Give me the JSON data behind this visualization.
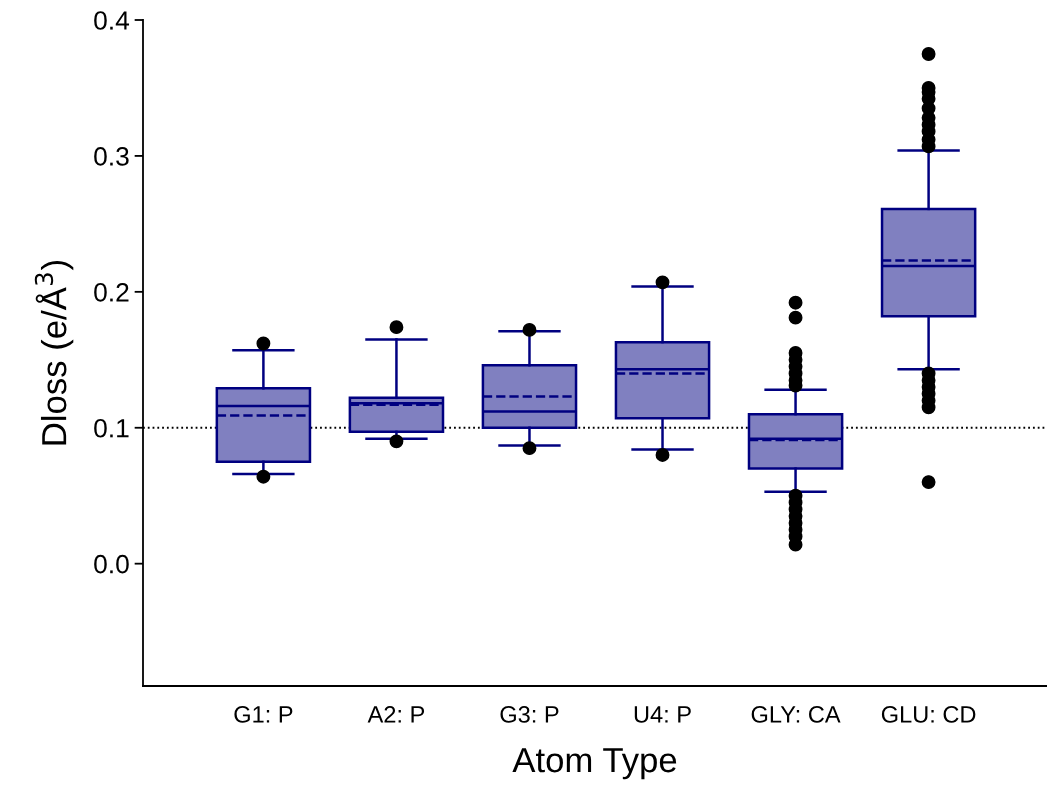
{
  "chart_data": {
    "type": "box",
    "xlabel": "Atom Type",
    "ylabel": "Dloss (e/Å$^{3}$)",
    "categories": [
      "G1: P",
      "A2: P",
      "G3: P",
      "U4: P",
      "GLY: CA",
      "GLU: CD"
    ],
    "color": "#8080c0",
    "boxes": [
      {
        "low": 0.066,
        "q1": 0.075,
        "median": 0.116,
        "q3": 0.129,
        "high": 0.157,
        "mean": 0.109,
        "outliers": [
          0.162,
          0.064
        ]
      },
      {
        "low": 0.092,
        "q1": 0.097,
        "median": 0.118,
        "q3": 0.122,
        "high": 0.165,
        "mean": 0.117,
        "outliers": [
          0.174,
          0.09
        ]
      },
      {
        "low": 0.087,
        "q1": 0.1,
        "median": 0.112,
        "q3": 0.146,
        "high": 0.171,
        "mean": 0.123,
        "outliers": [
          0.172,
          0.085
        ]
      },
      {
        "low": 0.084,
        "q1": 0.107,
        "median": 0.143,
        "q3": 0.163,
        "high": 0.204,
        "mean": 0.14,
        "outliers": [
          0.207,
          0.08
        ]
      },
      {
        "low": 0.053,
        "q1": 0.07,
        "median": 0.092,
        "q3": 0.11,
        "high": 0.128,
        "mean": 0.091,
        "outliers": [
          0.131,
          0.135,
          0.14,
          0.145,
          0.15,
          0.155,
          0.181,
          0.192,
          0.05,
          0.045,
          0.04,
          0.035,
          0.03,
          0.025,
          0.02,
          0.014
        ]
      },
      {
        "low": 0.143,
        "q1": 0.182,
        "median": 0.219,
        "q3": 0.261,
        "high": 0.304,
        "mean": 0.223,
        "outliers": [
          0.307,
          0.312,
          0.318,
          0.323,
          0.328,
          0.335,
          0.342,
          0.347,
          0.35,
          0.375,
          0.14,
          0.135,
          0.13,
          0.125,
          0.12,
          0.115,
          0.06
        ]
      }
    ],
    "ylim": [
      -0.09,
      0.4
    ],
    "yticks": [
      {
        "value": 0.0,
        "label": "0.0"
      },
      {
        "value": 0.1,
        "label": "0.1"
      },
      {
        "value": 0.2,
        "label": "0.2"
      },
      {
        "value": 0.3,
        "label": "0.3"
      },
      {
        "value": 0.4,
        "label": "0.4"
      }
    ],
    "ref_lines": [
      {
        "axis": "y",
        "value": 0.1,
        "color": "#000000",
        "line_style": "dotted"
      }
    ],
    "grid": false,
    "legend": false
  }
}
